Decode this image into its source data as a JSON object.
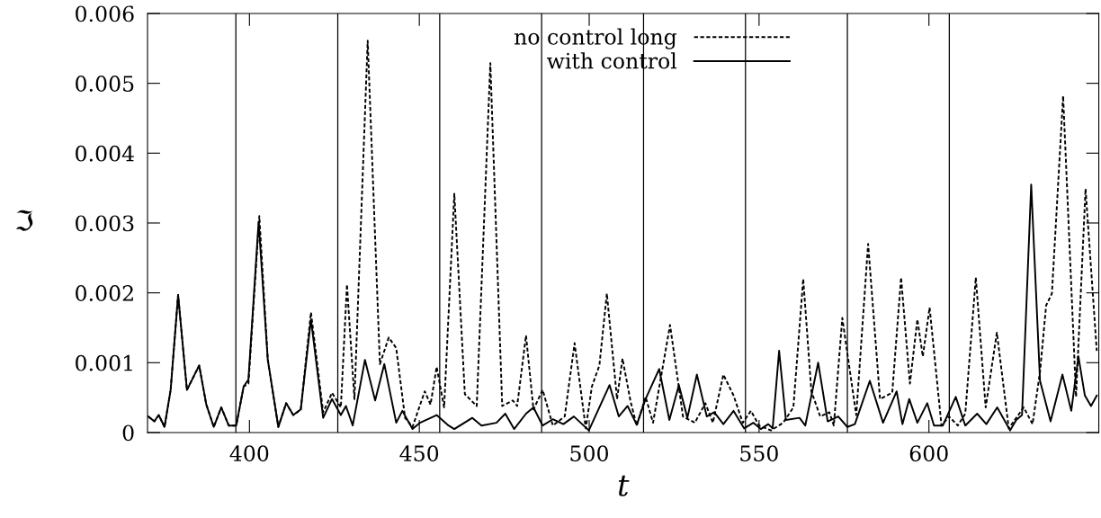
{
  "chart_data": {
    "type": "line",
    "xlabel": "t",
    "ylabel": "ℑ",
    "xlim": [
      370,
      650
    ],
    "ylim": [
      0,
      0.006
    ],
    "xticks": [
      400,
      450,
      500,
      550,
      600
    ],
    "yticks": [
      0,
      0.001,
      0.002,
      0.003,
      0.004,
      0.005,
      0.006
    ],
    "grid": false,
    "legend": "top",
    "marker": "none",
    "ref_lines": [
      {
        "axis": "x",
        "value": 396,
        "color": "#000000"
      },
      {
        "axis": "x",
        "value": 426,
        "color": "#000000"
      },
      {
        "axis": "x",
        "value": 456,
        "color": "#000000"
      },
      {
        "axis": "x",
        "value": 486,
        "color": "#000000"
      },
      {
        "axis": "x",
        "value": 516,
        "color": "#000000"
      },
      {
        "axis": "x",
        "value": 546,
        "color": "#000000"
      },
      {
        "axis": "x",
        "value": 576,
        "color": "#000000"
      },
      {
        "axis": "x",
        "value": 606,
        "color": "#000000"
      }
    ],
    "series": [
      {
        "name": "no control long",
        "color": "#000000",
        "line_style": "dashed",
        "x": [
          370.2,
          372.0,
          373.3,
          375.0,
          376.8,
          379.0,
          381.6,
          385.2,
          387.3,
          389.5,
          391.7,
          393.9,
          396.1,
          398.3,
          399.7,
          402.9,
          405.4,
          408.5,
          410.8,
          412.9,
          415.1,
          418.1,
          421.7,
          424.3,
          426.9,
          428.7,
          430.9,
          434.8,
          438.4,
          441.0,
          443.2,
          445.8,
          448.0,
          451.6,
          453.3,
          455.1,
          457.3,
          460.3,
          463.4,
          466.9,
          470.9,
          474.4,
          477.5,
          478.8,
          481.4,
          483.6,
          486.3,
          489.3,
          492.8,
          495.7,
          499.0,
          500.8,
          503.0,
          505.2,
          508.2,
          509.8,
          512.2,
          514.0,
          516.6,
          518.8,
          523.8,
          527.6,
          531.1,
          534.2,
          536.4,
          539.5,
          542.5,
          545.2,
          547.6,
          550.0,
          553.5,
          557.1,
          560.1,
          563.0,
          565.4,
          568.0,
          570.7,
          572.0,
          574.5,
          578.6,
          582.1,
          585.6,
          589.2,
          591.8,
          594.4,
          596.6,
          598.2,
          600.2,
          603.7,
          605.9,
          608.5,
          610.7,
          613.8,
          616.7,
          620.0,
          623.5,
          627.9,
          630.5,
          632.7,
          634.5,
          636.2,
          639.5,
          643.3,
          646.1,
          649.4
        ],
        "values": [
          0.00023,
          0.00016,
          0.00025,
          8e-05,
          0.00061,
          0.00197,
          0.00061,
          0.00096,
          0.0004,
          8e-05,
          0.00036,
          0.0001,
          0.0001,
          0.00066,
          0.0007,
          0.0031,
          0.00104,
          8e-05,
          0.00042,
          0.00025,
          0.00033,
          0.00172,
          0.00029,
          0.00057,
          0.00036,
          0.00212,
          0.00048,
          0.00561,
          0.00098,
          0.00136,
          0.00121,
          0.00021,
          8e-05,
          0.00059,
          0.0004,
          0.00094,
          0.00036,
          0.00342,
          0.00055,
          0.00038,
          0.00529,
          0.00038,
          0.00046,
          0.00038,
          0.00139,
          0.00033,
          0.00061,
          0.0001,
          0.00023,
          0.00128,
          6e-05,
          0.00066,
          0.00096,
          0.00199,
          0.00048,
          0.00106,
          0.00044,
          0.0001,
          0.00051,
          0.00014,
          0.00154,
          0.00023,
          0.00014,
          0.00042,
          0.00014,
          0.00083,
          0.00053,
          0.00014,
          0.00031,
          0.0001,
          3e-05,
          0.00014,
          0.00036,
          0.0022,
          0.00059,
          0.00023,
          0.00029,
          0.0001,
          0.00164,
          0.00025,
          0.0027,
          0.00048,
          0.00057,
          0.00222,
          0.0007,
          0.00162,
          0.00109,
          0.00179,
          0.0001,
          0.00023,
          0.0001,
          0.00027,
          0.00222,
          0.00036,
          0.00143,
          6e-05,
          0.00036,
          0.00012,
          0.00087,
          0.00182,
          0.00199,
          0.00482,
          0.00051,
          0.00349,
          0.00117
        ]
      },
      {
        "name": "with control",
        "color": "#000000",
        "line_style": "solid",
        "x": [
          370.2,
          372.0,
          373.3,
          375.0,
          376.8,
          379.0,
          381.6,
          385.2,
          387.3,
          389.5,
          391.7,
          393.9,
          396.1,
          398.3,
          399.7,
          402.7,
          405.4,
          408.5,
          410.8,
          412.9,
          415.1,
          418.1,
          421.7,
          424.3,
          426.9,
          428.4,
          430.4,
          434.0,
          437.0,
          439.7,
          443.2,
          445.0,
          448.0,
          450.2,
          455.1,
          458.6,
          460.3,
          465.6,
          468.3,
          472.7,
          475.3,
          477.9,
          481.4,
          483.6,
          486.3,
          489.3,
          492.4,
          495.5,
          499.9,
          506.0,
          508.7,
          511.3,
          514.0,
          516.6,
          520.6,
          523.6,
          526.4,
          528.9,
          531.7,
          534.6,
          536.8,
          539.5,
          542.5,
          545.6,
          548.3,
          550.5,
          552.7,
          554.0,
          555.9,
          557.9,
          561.9,
          563.6,
          567.4,
          570.2,
          573.3,
          576.0,
          578.2,
          582.6,
          586.5,
          590.5,
          592.2,
          594.2,
          596.6,
          599.5,
          601.5,
          604.1,
          607.9,
          610.7,
          614.2,
          616.9,
          620.1,
          623.9,
          625.7,
          627.4,
          630.1,
          632.7,
          635.8,
          639.3,
          641.9,
          644.0,
          645.9,
          647.7,
          649.4
        ],
        "values": [
          0.00023,
          0.00016,
          0.00025,
          8e-05,
          0.00061,
          0.00197,
          0.00061,
          0.00096,
          0.0004,
          8e-05,
          0.00036,
          0.0001,
          0.0001,
          0.00066,
          0.00076,
          0.00302,
          0.00104,
          8e-05,
          0.00042,
          0.00025,
          0.00033,
          0.00162,
          0.00021,
          0.00048,
          0.00025,
          0.00038,
          0.0001,
          0.00104,
          0.00046,
          0.00098,
          0.00014,
          0.00031,
          5e-05,
          0.00014,
          0.00025,
          0.0001,
          5e-05,
          0.00021,
          0.0001,
          0.00014,
          0.00027,
          5e-05,
          0.00027,
          0.00036,
          0.0001,
          0.00019,
          0.00012,
          0.00023,
          3e-05,
          0.00068,
          0.00023,
          0.00038,
          0.00011,
          0.00048,
          0.00091,
          0.00018,
          0.00068,
          0.00021,
          0.00083,
          0.00023,
          0.00029,
          0.00012,
          0.00031,
          6e-05,
          0.00014,
          5e-05,
          0.00012,
          6e-05,
          0.00117,
          0.00018,
          0.00021,
          0.0001,
          0.001,
          0.00016,
          0.00023,
          8e-05,
          0.00012,
          0.00074,
          0.00014,
          0.00059,
          0.00012,
          0.00048,
          0.00014,
          0.00042,
          0.0001,
          0.0001,
          0.00051,
          0.0001,
          0.00027,
          0.00012,
          0.00036,
          3e-05,
          0.00018,
          0.00025,
          0.00355,
          0.00074,
          0.00016,
          0.00083,
          0.00031,
          0.00109,
          0.00053,
          0.00038,
          0.00053
        ]
      }
    ]
  }
}
